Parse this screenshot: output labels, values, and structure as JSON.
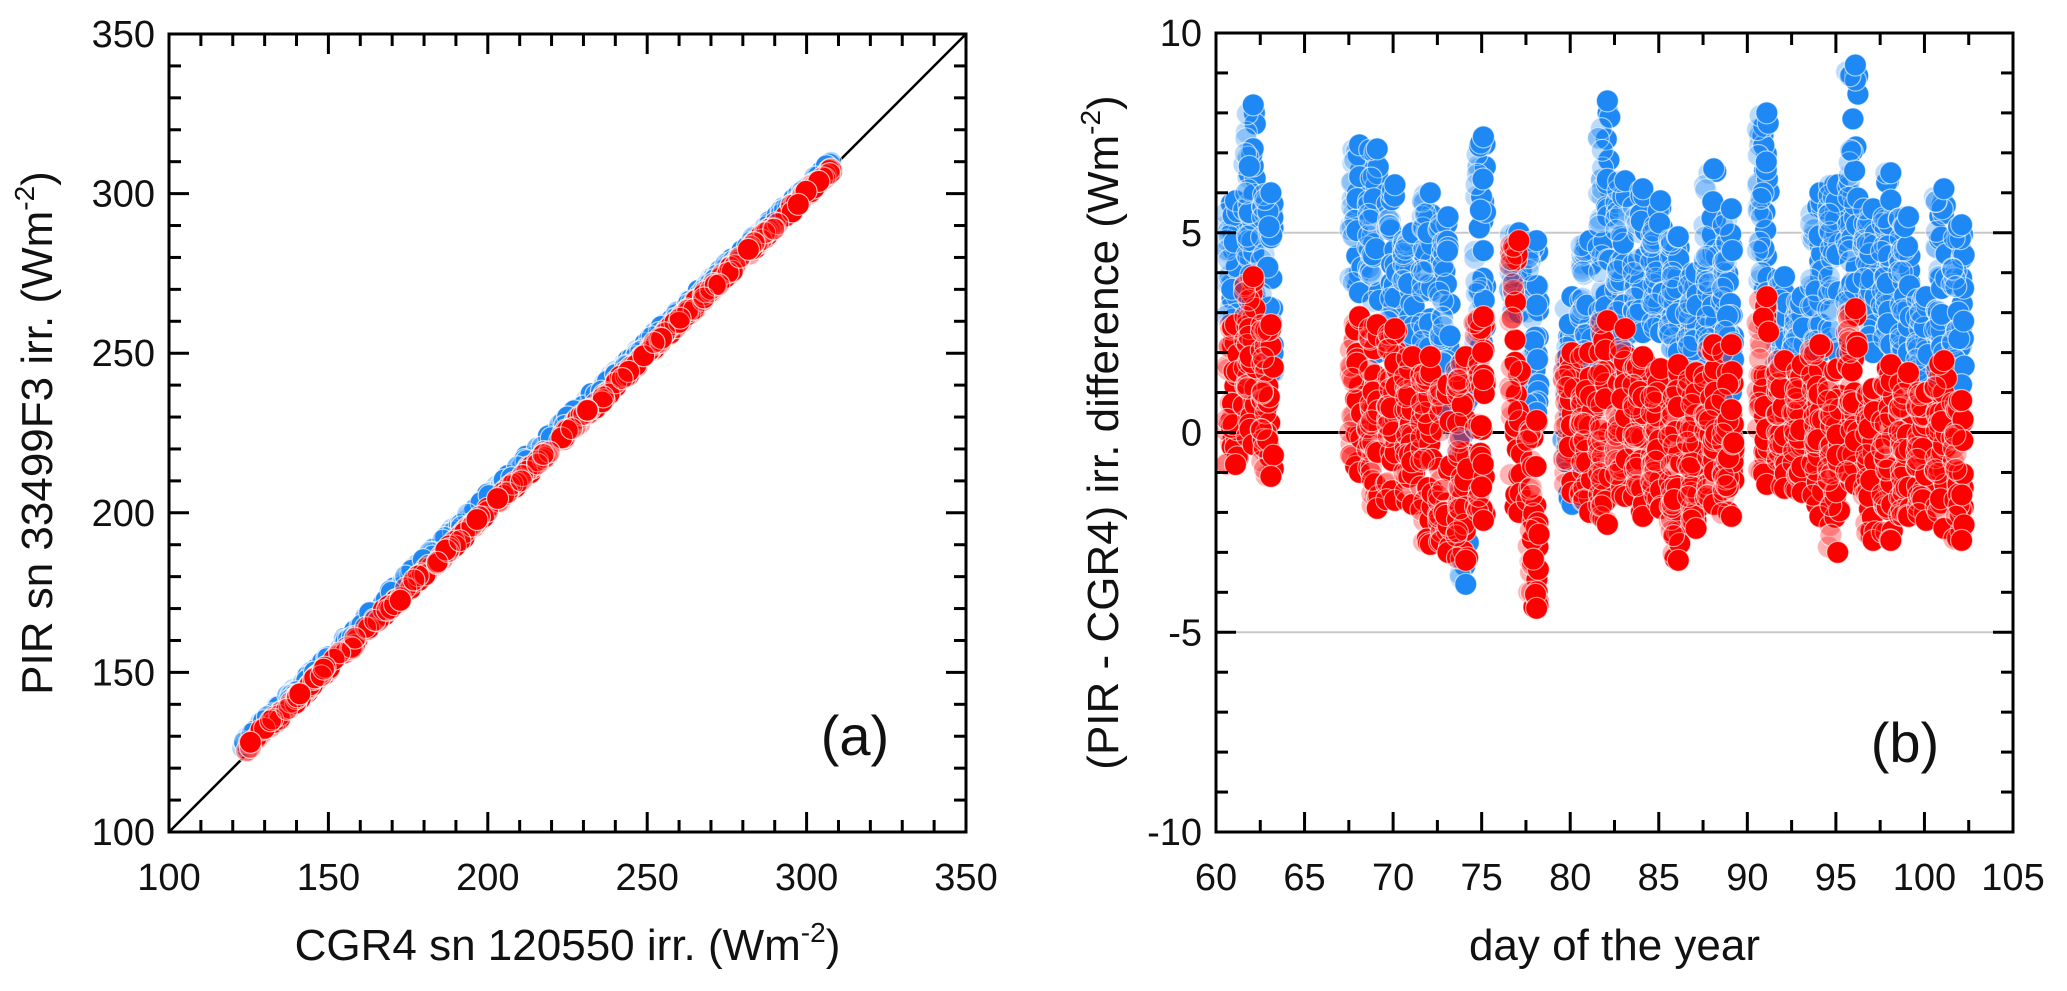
{
  "chart_data": [
    {
      "id": "a",
      "type": "scatter",
      "panel_label": "(a)",
      "xlabel": "CGR4 sn 120550 irr. (Wm",
      "xlabel_sup": "-2",
      "xlabel_end": ")",
      "ylabel": "PIR sn 33499F3 irr. (Wm",
      "ylabel_sup": "-2",
      "ylabel_end": ")",
      "xlim": [
        100,
        350
      ],
      "ylim": [
        100,
        350
      ],
      "xticks": [
        100,
        150,
        200,
        250,
        300,
        350
      ],
      "yticks": [
        100,
        150,
        200,
        250,
        300,
        350
      ],
      "xtick_labels": [
        "100",
        "150",
        "200",
        "250",
        "300",
        "350"
      ],
      "ytick_labels": [
        "100",
        "150",
        "200",
        "250",
        "300",
        "350"
      ],
      "minor_tick_step": 10,
      "reference_line": "1:1",
      "grid": false,
      "series": [
        {
          "name": "blue",
          "color": "#1E88F5",
          "x_range": [
            123,
            308
          ],
          "offset_vs_x": [
            [
              125,
              4.5
            ],
            [
              200,
              5.0
            ],
            [
              250,
              3.0
            ],
            [
              300,
              1.5
            ]
          ]
        },
        {
          "name": "red",
          "color": "#FF0000",
          "x_range": [
            124,
            308
          ],
          "offset_vs_x": [
            [
              125,
              2.0
            ],
            [
              200,
              0.5
            ],
            [
              250,
              0.0
            ],
            [
              300,
              0.0
            ]
          ]
        }
      ]
    },
    {
      "id": "b",
      "type": "scatter",
      "panel_label": "(b)",
      "xlabel": "day of the year",
      "ylabel": "(PIR - CGR4) irr. difference (Wm",
      "ylabel_sup": "-2",
      "ylabel_end": ")",
      "xlim": [
        60,
        105
      ],
      "ylim": [
        -10,
        10
      ],
      "xticks": [
        60,
        65,
        70,
        75,
        80,
        85,
        90,
        95,
        100,
        105
      ],
      "xtick_labels": [
        "60",
        "65",
        "70",
        "75",
        "80",
        "85",
        "90",
        "95",
        "100",
        "105"
      ],
      "yticks": [
        -10,
        -5,
        0,
        5,
        10
      ],
      "ytick_labels": [
        "-10",
        "-5",
        "0",
        "5",
        "10"
      ],
      "x_minor_tick_step": 2.5,
      "y_minor_tick_step": 1,
      "hlines": [
        {
          "y": 5,
          "color": "#c8c8c8"
        },
        {
          "y": 0,
          "color": "#000000"
        },
        {
          "y": -5,
          "color": "#c8c8c8"
        }
      ],
      "grid": false,
      "series": [
        {
          "name": "blue",
          "color": "#1E88F5",
          "days": [
            61,
            62,
            63,
            68,
            69,
            70,
            71,
            72,
            73,
            74,
            75,
            77,
            78,
            80,
            81,
            82,
            83,
            84,
            85,
            86,
            87,
            88,
            89,
            91,
            92,
            93,
            94,
            95,
            96,
            97,
            98,
            99,
            100,
            101,
            102
          ],
          "min": [
            2.5,
            3.0,
            1.5,
            3.5,
            2.0,
            2.0,
            1.5,
            1.0,
            0.5,
            -3.8,
            2.0,
            3.0,
            0.5,
            -1.8,
            0.5,
            2.0,
            2.0,
            2.5,
            2.5,
            2.0,
            1.0,
            2.0,
            1.0,
            3.5,
            1.5,
            1.0,
            2.0,
            2.0,
            3.0,
            2.0,
            2.2,
            2.0,
            1.0,
            2.0,
            1.2
          ],
          "max": [
            5.8,
            8.2,
            6.0,
            7.2,
            7.1,
            6.2,
            5.0,
            6.0,
            5.4,
            1.8,
            7.4,
            5.0,
            4.8,
            3.4,
            4.8,
            8.3,
            6.3,
            6.1,
            5.8,
            4.9,
            4.0,
            6.6,
            5.6,
            8.0,
            3.9,
            3.4,
            6.0,
            6.2,
            9.2,
            5.6,
            6.5,
            5.4,
            3.4,
            6.1,
            5.2
          ]
        },
        {
          "name": "red",
          "color": "#FF0000",
          "days": [
            61,
            62,
            63,
            68,
            69,
            70,
            71,
            72,
            73,
            74,
            75,
            77,
            78,
            80,
            81,
            82,
            83,
            84,
            85,
            86,
            87,
            88,
            89,
            91,
            92,
            93,
            94,
            95,
            96,
            97,
            98,
            99,
            100,
            101,
            102
          ],
          "min": [
            -0.8,
            -0.3,
            -1.1,
            -1.0,
            -1.9,
            -1.7,
            -1.8,
            -2.8,
            -3.0,
            -3.2,
            -2.2,
            -2.0,
            -4.4,
            -1.5,
            -2.0,
            -2.3,
            -1.6,
            -2.1,
            -1.9,
            -3.2,
            -2.4,
            -1.8,
            -2.1,
            -1.3,
            -1.4,
            -1.5,
            -2.1,
            -3.0,
            -1.3,
            -2.7,
            -2.7,
            -2.1,
            -2.2,
            -2.4,
            -2.7
          ],
          "max": [
            2.7,
            3.9,
            2.7,
            2.9,
            2.7,
            2.6,
            1.9,
            1.9,
            1.2,
            1.9,
            2.9,
            4.8,
            0.3,
            2.0,
            2.0,
            2.8,
            2.6,
            1.9,
            1.6,
            1.7,
            1.5,
            2.2,
            2.2,
            3.4,
            1.8,
            1.7,
            2.2,
            1.6,
            3.1,
            1.1,
            1.7,
            1.5,
            1.0,
            1.8,
            0.8
          ]
        }
      ]
    }
  ]
}
